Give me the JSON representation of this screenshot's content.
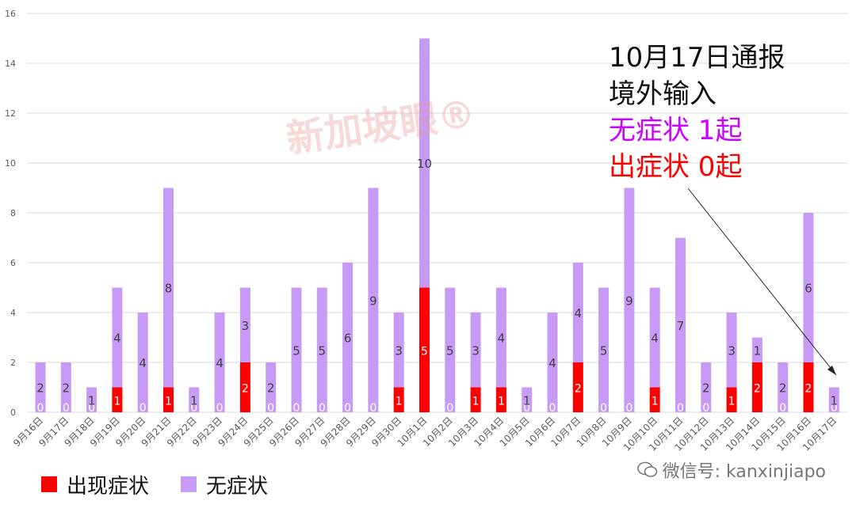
{
  "watermark": {
    "logo_text": "新加坡眼®",
    "account": "微信号: kanxinjiapo"
  },
  "annotation": {
    "line1": "10月17日通报",
    "line2": "境外输入",
    "line3": "无症状 1起",
    "line4": "出症状 0起",
    "line3_color": "#cc00ff",
    "line4_color": "#ff0000",
    "line12_color": "#111111"
  },
  "legend": {
    "items": [
      {
        "label": "出现症状",
        "color": "#ff0000"
      },
      {
        "label": "无症状",
        "color": "#c79bf5"
      }
    ]
  },
  "chart_data": {
    "type": "bar",
    "stacked": true,
    "categories": [
      "9月16日",
      "9月17日",
      "9月18日",
      "9月19日",
      "9月20日",
      "9月21日",
      "9月22日",
      "9月23日",
      "9月24日",
      "9月25日",
      "9月26日",
      "9月27日",
      "9月28日",
      "9月29日",
      "9月30日",
      "10月1日",
      "10月2日",
      "10月3日",
      "10月4日",
      "10月5日",
      "10月6日",
      "10月7日",
      "10月8日",
      "10月9日",
      "10月10日",
      "10月11日",
      "10月12日",
      "10月13日",
      "10月14日",
      "10月15日",
      "10月16日",
      "10月17日"
    ],
    "series": [
      {
        "name": "出现症状",
        "color": "#ff0000",
        "values": [
          0,
          0,
          0,
          1,
          0,
          1,
          0,
          0,
          2,
          0,
          0,
          0,
          0,
          0,
          1,
          5,
          0,
          1,
          1,
          0,
          0,
          2,
          0,
          0,
          1,
          0,
          0,
          1,
          2,
          0,
          2,
          0
        ]
      },
      {
        "name": "无症状",
        "color": "#c79bf5",
        "values": [
          2,
          2,
          1,
          4,
          4,
          8,
          1,
          4,
          3,
          2,
          5,
          5,
          6,
          9,
          3,
          10,
          5,
          3,
          4,
          1,
          4,
          4,
          5,
          9,
          4,
          7,
          2,
          3,
          1,
          2,
          6,
          1
        ]
      }
    ],
    "ylim": [
      0,
      16
    ],
    "yticks": [
      0,
      2,
      4,
      6,
      8,
      10,
      12,
      14,
      16
    ],
    "grid": true,
    "legend_position": "bottom-left"
  }
}
